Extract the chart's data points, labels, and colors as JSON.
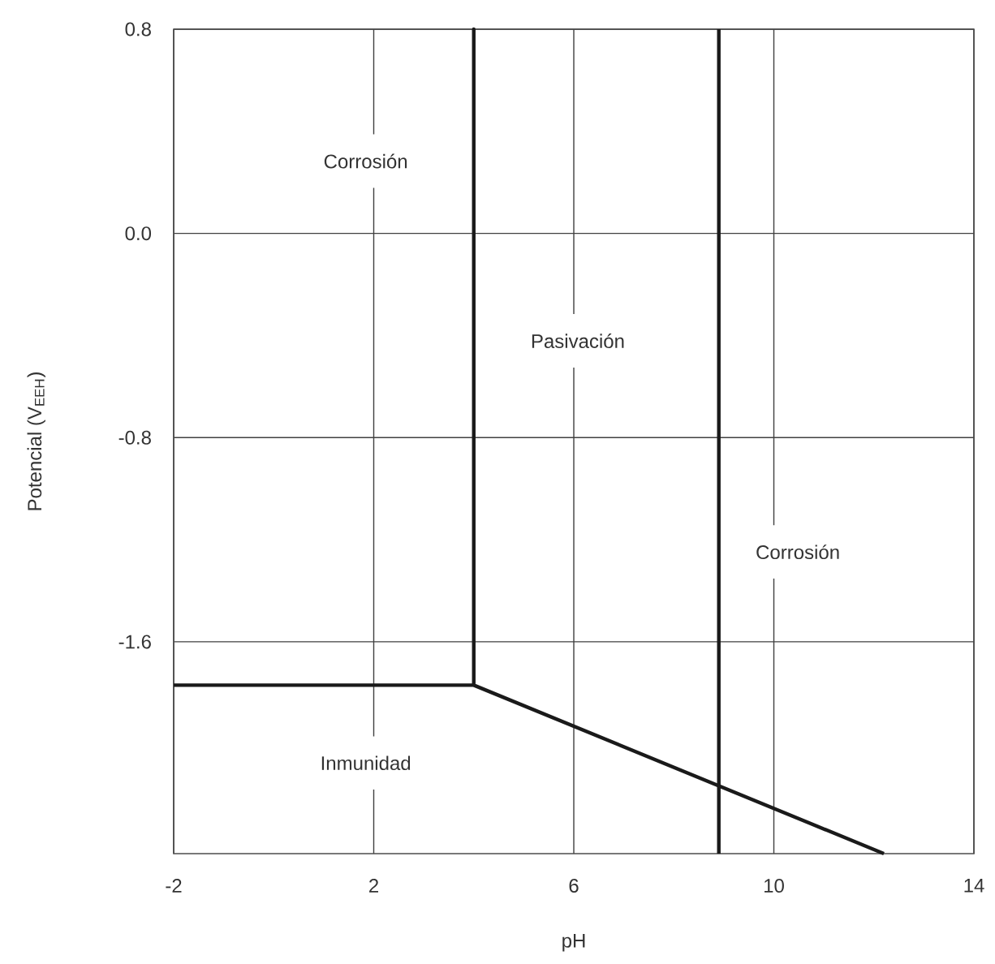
{
  "chart_data": {
    "type": "line",
    "xlabel": "pH",
    "ylabel": "Potencial  (V$_{EEH}$)",
    "xlim": [
      -2,
      14
    ],
    "ylim": [
      -2.43,
      0.8
    ],
    "xticks": [
      -2,
      2,
      6,
      10,
      14
    ],
    "yticks": [
      -1.6,
      -0.8,
      {
        "value": 0,
        "label": "0.0"
      },
      0.8
    ],
    "grid": true,
    "marker": "none",
    "line_style": "solid",
    "series": [
      {
        "color": "#1a1a1a",
        "x": [
          -2,
          4,
          4,
          4,
          12.2
        ],
        "values": [
          -1.77,
          -1.77,
          0.8,
          -1.77,
          -2.43
        ]
      },
      {
        "color": "#1a1a1a",
        "x": [
          8.9,
          8.9
        ],
        "values": [
          0.8,
          -2.43
        ]
      }
    ],
    "annotations": [
      "Corrosión",
      "Pasivación",
      "Corrosión",
      "Inmunidad"
    ]
  }
}
